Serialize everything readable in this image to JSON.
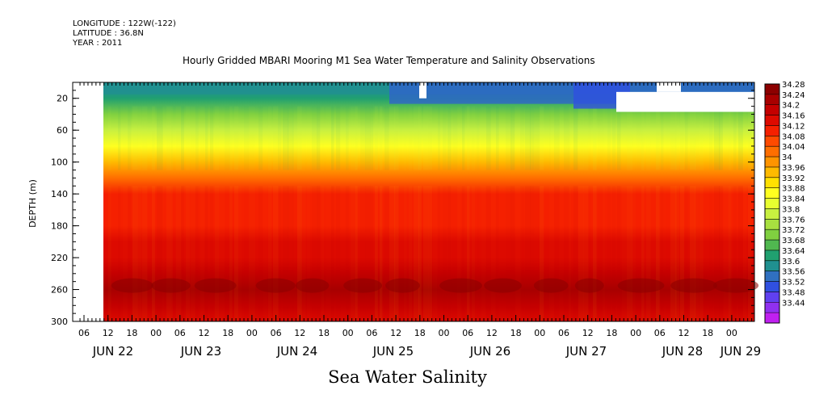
{
  "header": {
    "longitude": "LONGITUDE : 122W(-122)",
    "latitude": "LATITUDE : 36.8N",
    "year": "YEAR : 2011"
  },
  "chart_data": {
    "type": "heatmap",
    "title": "Hourly Gridded MBARI Mooring M1 Sea Water Temperature and Salinity Observations",
    "footer_title": "Sea Water Salinity",
    "ylabel": "DEPTH (m)",
    "xlabel": "",
    "ylim": [
      300,
      0
    ],
    "y_ticks": [
      20,
      60,
      100,
      140,
      180,
      220,
      260,
      300
    ],
    "x_hour_ticks": [
      "06",
      "12",
      "18",
      "00",
      "06",
      "12",
      "18",
      "00",
      "06",
      "12",
      "18",
      "00",
      "06",
      "12",
      "18",
      "00",
      "06",
      "12",
      "18",
      "00",
      "06",
      "12",
      "18",
      "00",
      "06",
      "12",
      "18",
      "00"
    ],
    "x_day_labels": [
      "JUN 22",
      "JUN 23",
      "JUN 24",
      "JUN 25",
      "JUN 26",
      "JUN 27",
      "JUN 28",
      "JUN 29"
    ],
    "colorbar_levels": [
      "34.28",
      "34.24",
      "34.2",
      "34.16",
      "34.12",
      "34.08",
      "34.04",
      "34",
      "33.96",
      "33.92",
      "33.88",
      "33.84",
      "33.8",
      "33.76",
      "33.72",
      "33.68",
      "33.64",
      "33.6",
      "33.56",
      "33.52",
      "33.48",
      "33.44"
    ],
    "colorbar_colors": [
      "#8c0000",
      "#a80000",
      "#c40000",
      "#dd0a00",
      "#f52000",
      "#ff4a00",
      "#ff6e00",
      "#ff9400",
      "#ffba00",
      "#ffe000",
      "#ffff20",
      "#e8ff30",
      "#c8f040",
      "#a8e040",
      "#80d040",
      "#50b850",
      "#20a070",
      "#209090",
      "#3070c0",
      "#3050e0",
      "#6040f0",
      "#9030f0",
      "#c020f0"
    ],
    "depth_profile_salinity": [
      {
        "depth": 10,
        "value": 33.62
      },
      {
        "depth": 20,
        "value": 33.66
      },
      {
        "depth": 40,
        "value": 33.74
      },
      {
        "depth": 60,
        "value": 33.8
      },
      {
        "depth": 80,
        "value": 33.88
      },
      {
        "depth": 100,
        "value": 33.96
      },
      {
        "depth": 120,
        "value": 34.06
      },
      {
        "depth": 140,
        "value": 34.12
      },
      {
        "depth": 160,
        "value": 34.14
      },
      {
        "depth": 180,
        "value": 34.14
      },
      {
        "depth": 200,
        "value": 34.16
      },
      {
        "depth": 220,
        "value": 34.18
      },
      {
        "depth": 240,
        "value": 34.2
      },
      {
        "depth": 260,
        "value": 34.24
      },
      {
        "depth": 280,
        "value": 34.2
      },
      {
        "depth": 300,
        "value": 34.16
      }
    ]
  }
}
